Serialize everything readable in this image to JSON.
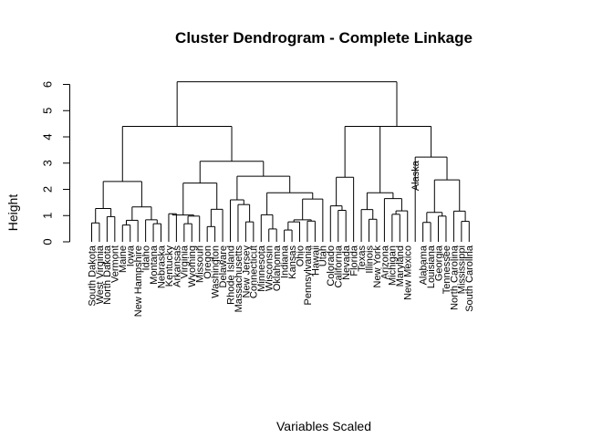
{
  "chart_data": {
    "type": "dendrogram",
    "title": "Cluster Dendrogram - Complete Linkage",
    "xlabel": "Variables Scaled",
    "ylabel": "Height",
    "ylim": [
      0,
      6.5
    ],
    "yticks": [
      0,
      1,
      2,
      3,
      4,
      5,
      6
    ],
    "leaves": [
      "South Dakota",
      "West Virginia",
      "North Dakota",
      "Vermont",
      "Maine",
      "Iowa",
      "New Hampshire",
      "Idaho",
      "Montana",
      "Nebraska",
      "Kentucky",
      "Arkansas",
      "Virginia",
      "Wyoming",
      "Missouri",
      "Oregon",
      "Washington",
      "Delaware",
      "Rhode Island",
      "Massachusetts",
      "New Jersey",
      "Connecticut",
      "Minnesota",
      "Wisconsin",
      "Oklahoma",
      "Indiana",
      "Kansas",
      "Ohio",
      "Pennsylvania",
      "Hawaii",
      "Utah",
      "Colorado",
      "California",
      "Nevada",
      "Florida",
      "Texas",
      "Illinois",
      "New York",
      "Arizona",
      "Michigan",
      "Maryland",
      "New Mexico",
      "Alaska",
      "Alabama",
      "Louisiana",
      "Georgia",
      "Tennessee",
      "North Carolina",
      "Mississippi",
      "South Carolina"
    ],
    "merges": [
      {
        "a": "South Dakota",
        "b": "West Virginia",
        "height": 0.72
      },
      {
        "a": "North Dakota",
        "b": "Vermont",
        "height": 0.96
      },
      {
        "a": "Maine",
        "b": "Iowa",
        "height": 0.64
      },
      {
        "a": "Montana",
        "b": "Nebraska",
        "height": 0.69
      },
      {
        "a": "Kentucky",
        "b": "Arkansas",
        "height": 1.07
      },
      {
        "a": "Virginia",
        "b": "Wyoming",
        "height": 0.69
      },
      {
        "a": "Oregon",
        "b": "Washington",
        "height": 0.58
      },
      {
        "a": "Rhode Island",
        "b": "Massachusetts",
        "height": 1.42
      },
      {
        "a": "New Jersey",
        "b": "Connecticut",
        "height": 0.76
      },
      {
        "a": "Wisconsin",
        "b": "Oklahoma",
        "height": 0.49
      },
      {
        "a": "Indiana",
        "b": "Kansas",
        "height": 0.45
      },
      {
        "a": "Pennsylvania",
        "b": "Hawaii",
        "height": 0.79
      },
      {
        "a": "California",
        "b": "Nevada",
        "height": 1.2
      },
      {
        "a": "Illinois",
        "b": "New York",
        "height": 0.86
      },
      {
        "a": "Michigan",
        "b": "Maryland",
        "height": 1.05
      },
      {
        "a": "Alabama",
        "b": "Louisiana",
        "height": 0.74
      },
      {
        "a": "Georgia",
        "b": "Tennessee",
        "height": 0.98
      },
      {
        "a": "Mississippi",
        "b": "South Carolina",
        "height": 0.78
      }
    ]
  }
}
